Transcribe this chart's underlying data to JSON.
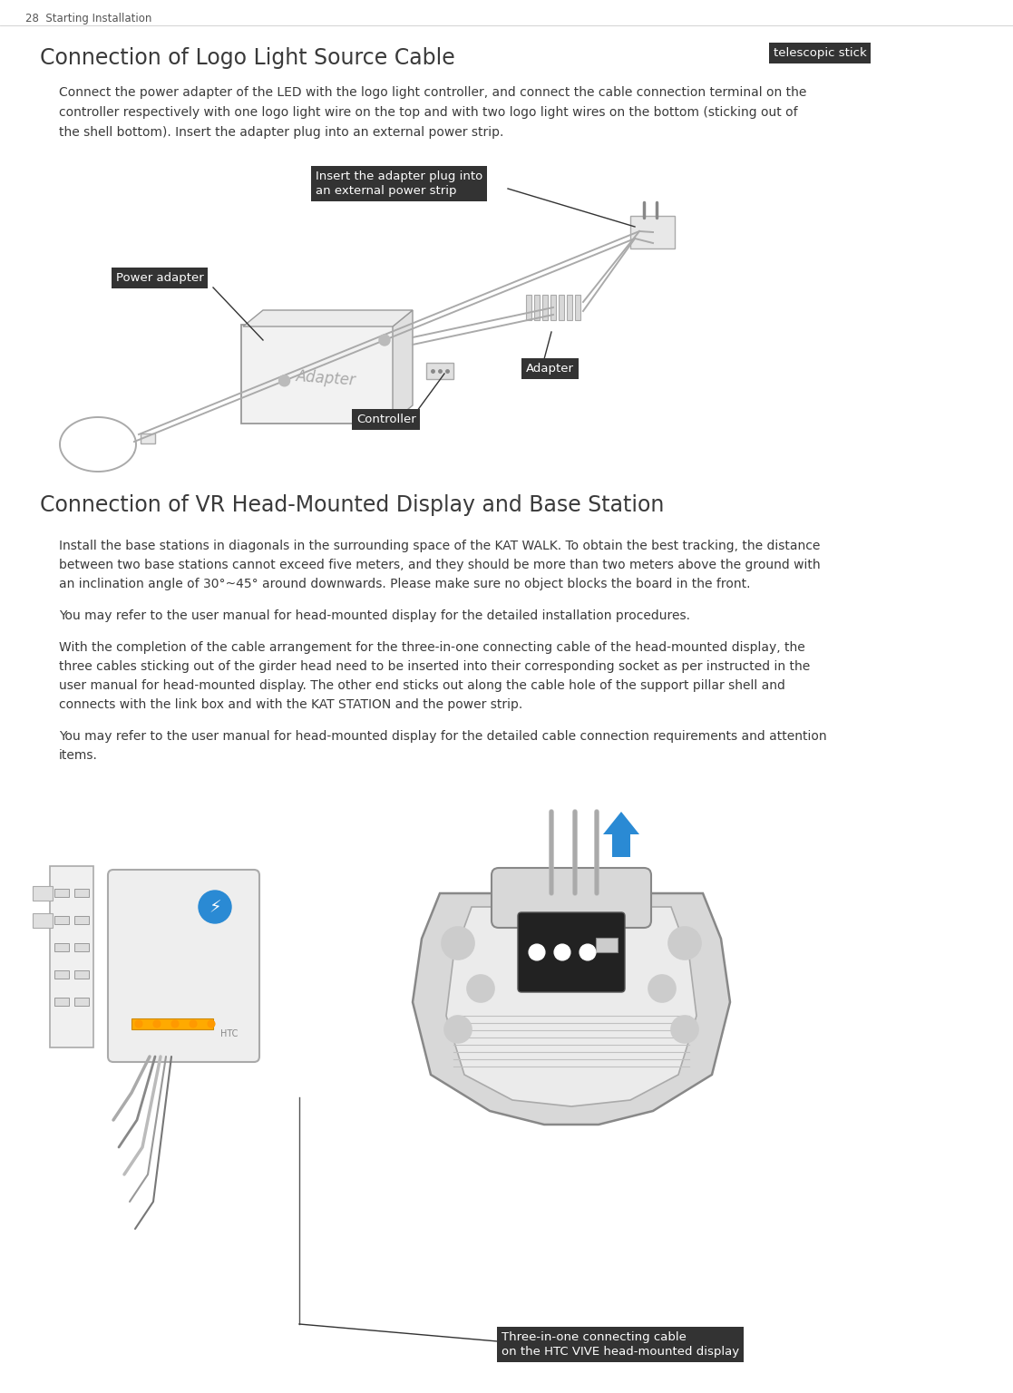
{
  "page_header": "28  Starting Installation",
  "section1_title": "Connection of Logo Light Source Cable",
  "section1_tag": "telescopic stick",
  "section1_body_line1": "Connect the power adapter of the LED with the logo light controller, and connect the cable connection terminal on the",
  "section1_body_line2": "controller respectively with one logo light wire on the top and with two logo light wires on the bottom (sticking out of",
  "section1_body_line3": "the shell bottom). Insert the adapter plug into an external power strip.",
  "label_insert": "Insert the adapter plug into\nan external power strip",
  "label_power_adapter": "Power adapter",
  "label_adapter": "Adapter",
  "label_controller": "Controller",
  "section2_title": "Connection of VR Head-Mounted Display and Base Station",
  "section2_para1_line1": "Install the base stations in diagonals in the surrounding space of the KAT WALK. To obtain the best tracking, the distance",
  "section2_para1_line2": "between two base stations cannot exceed five meters, and they should be more than two meters above the ground with",
  "section2_para1_line3": "an inclination angle of 30°~45° around downwards. Please make sure no object blocks the board in the front.",
  "section2_para2": "You may refer to the user manual for head-mounted display for the detailed installation procedures.",
  "section2_para3_line1": "With the completion of the cable arrangement for the three-in-one connecting cable of the head-mounted display, the",
  "section2_para3_line2": "three cables sticking out of the girder head need to be inserted into their corresponding socket as per instructed in the",
  "section2_para3_line3": "user manual for head-mounted display. The other end sticks out along the cable hole of the support pillar shell and",
  "section2_para3_line4": "connects with the link box and with the KAT STATION and the power strip.",
  "section2_para4_line1": "You may refer to the user manual for head-mounted display for the detailed cable connection requirements and attention",
  "section2_para4_line2": "items.",
  "bottom_label": "Three-in-one connecting cable\non the HTC VIVE head-mounted display",
  "bg_color": "#ffffff",
  "text_color": "#3a3a3a",
  "label_bg": "#333333",
  "label_fg": "#ffffff",
  "title_color": "#3a3a3a",
  "header_color": "#555555",
  "cable_color": "#aaaaaa",
  "adapter_text_color": "#888888"
}
